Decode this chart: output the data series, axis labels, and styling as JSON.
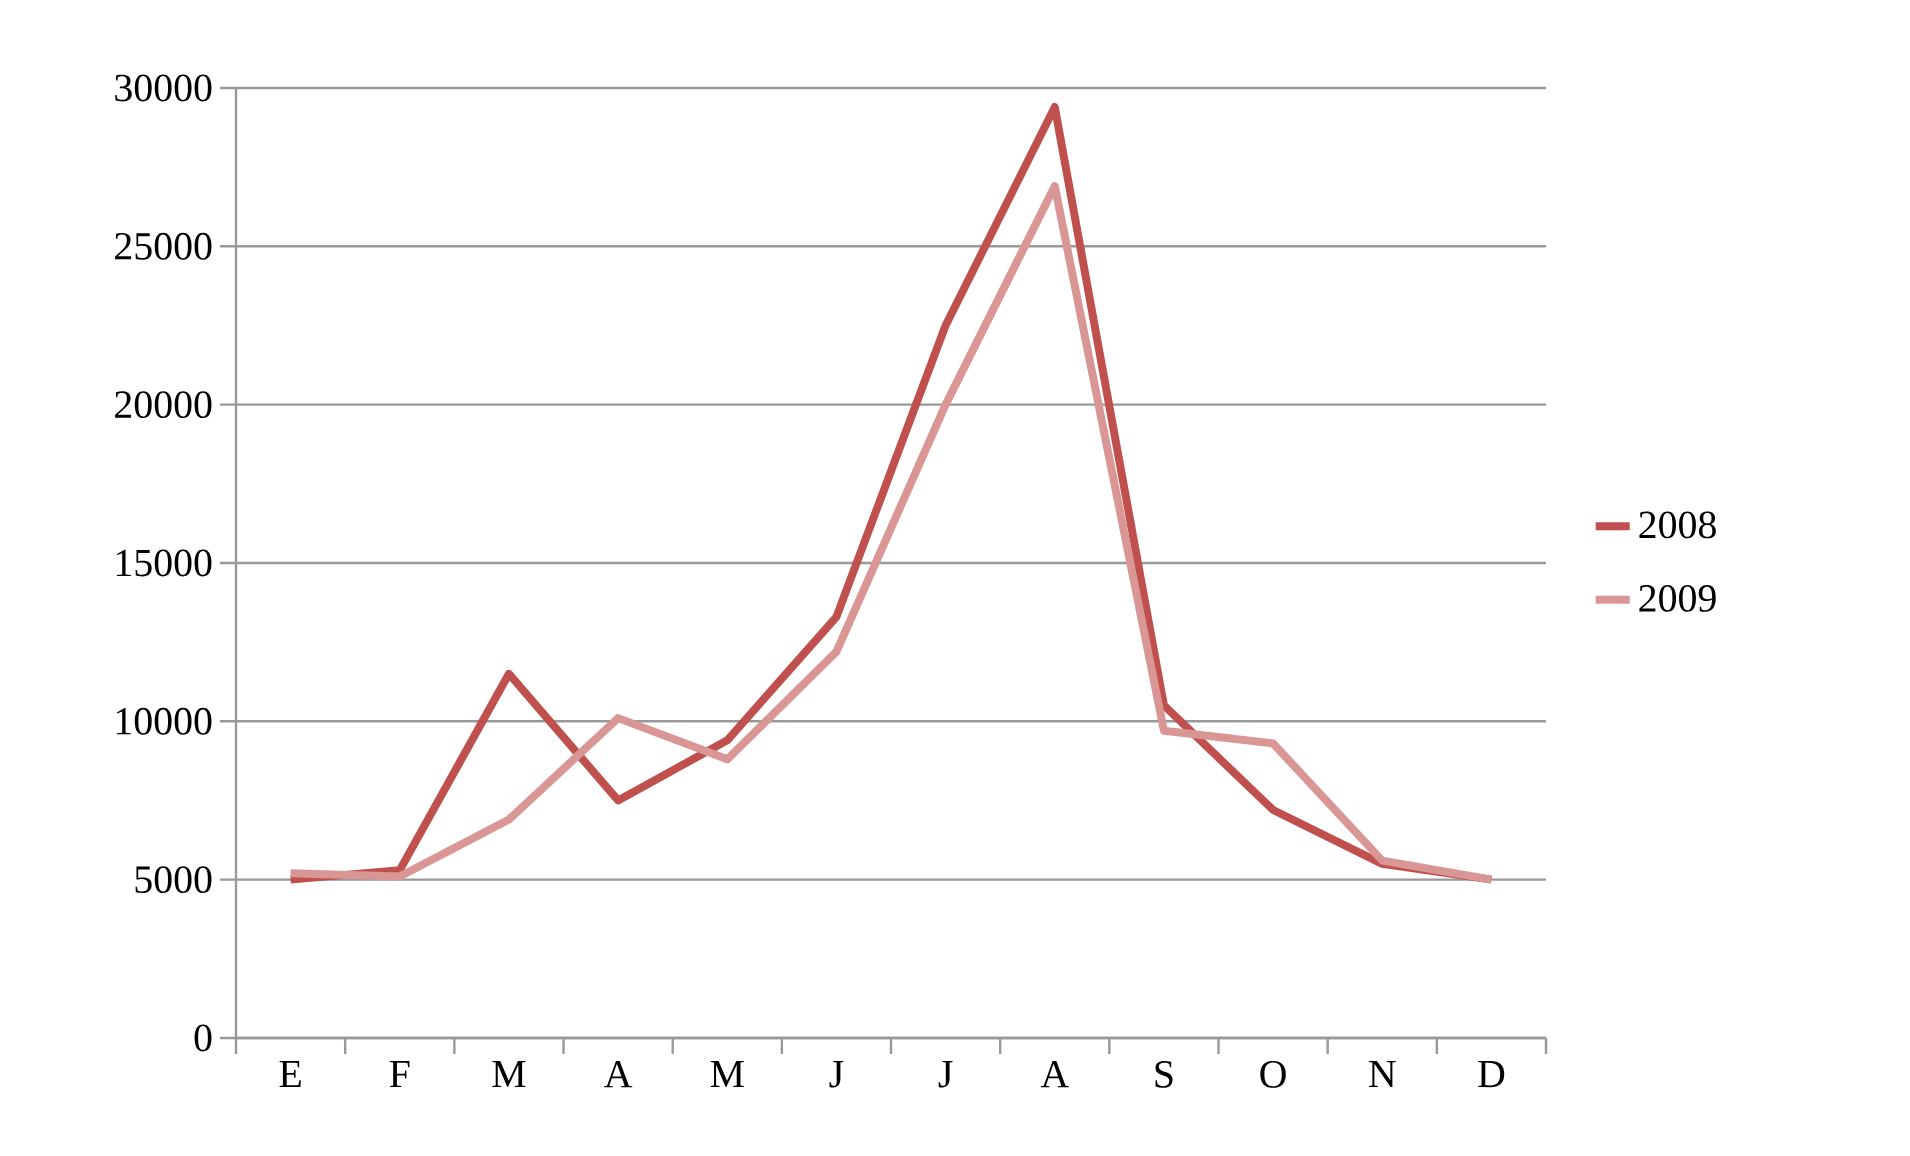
{
  "chart_data": {
    "type": "line",
    "categories": [
      "E",
      "F",
      "M",
      "A",
      "M",
      "J",
      "J",
      "A",
      "S",
      "O",
      "N",
      "D"
    ],
    "series": [
      {
        "name": "2008",
        "color": "#c0504d",
        "values": [
          5000,
          5300,
          11500,
          7500,
          9400,
          13300,
          22500,
          29400,
          10500,
          7200,
          5500,
          5000
        ]
      },
      {
        "name": "2009",
        "color": "#d99694",
        "values": [
          5200,
          5100,
          6900,
          10100,
          8800,
          12200,
          20000,
          26900,
          9700,
          9300,
          5600,
          5000
        ]
      }
    ],
    "ylim": [
      0,
      30000
    ],
    "yticks": [
      0,
      5000,
      10000,
      15000,
      20000,
      25000,
      30000
    ],
    "grid": "y",
    "legend": "right",
    "marker": "none",
    "line_style": "solid"
  }
}
